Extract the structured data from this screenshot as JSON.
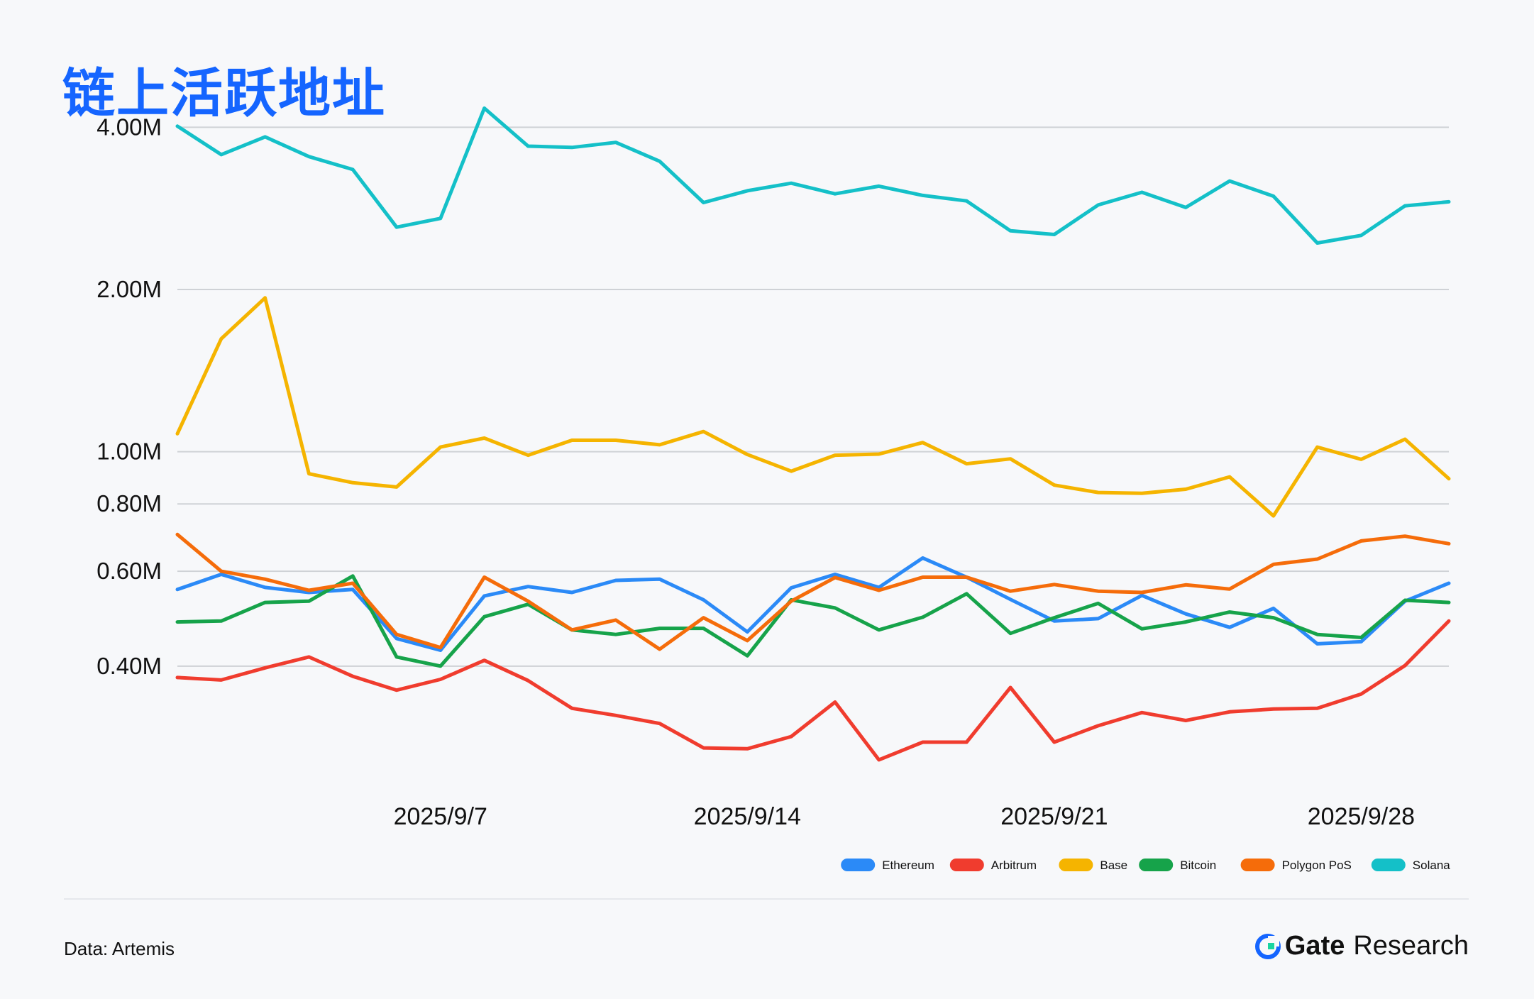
{
  "title": "链上活跃地址",
  "source": "Data: Artemis",
  "brand": {
    "name": "Gate",
    "sub": "Research",
    "icon": "gate-logo-icon",
    "icon_color": "#1565ff"
  },
  "chart_data": {
    "type": "line",
    "y_scale": "log",
    "ylim": [
      220000,
      4400000
    ],
    "y_ticks": [
      {
        "value": 400000,
        "label": "0.40M"
      },
      {
        "value": 600000,
        "label": "0.60M"
      },
      {
        "value": 800000,
        "label": "0.80M"
      },
      {
        "value": 1000000,
        "label": "1.00M"
      },
      {
        "value": 2000000,
        "label": "2.00M"
      },
      {
        "value": 4000000,
        "label": "4.00M"
      }
    ],
    "x": [
      "2025-09-01",
      "2025-09-02",
      "2025-09-03",
      "2025-09-04",
      "2025-09-05",
      "2025-09-06",
      "2025-09-07",
      "2025-09-08",
      "2025-09-09",
      "2025-09-10",
      "2025-09-11",
      "2025-09-12",
      "2025-09-13",
      "2025-09-14",
      "2025-09-15",
      "2025-09-16",
      "2025-09-17",
      "2025-09-18",
      "2025-09-19",
      "2025-09-20",
      "2025-09-21",
      "2025-09-22",
      "2025-09-23",
      "2025-09-24",
      "2025-09-25",
      "2025-09-26",
      "2025-09-27",
      "2025-09-28",
      "2025-09-29",
      "2025-09-30"
    ],
    "x_ticks": [
      {
        "value": "2025-09-07",
        "label": "2025/9/7"
      },
      {
        "value": "2025-09-14",
        "label": "2025/9/14"
      },
      {
        "value": "2025-09-21",
        "label": "2025/9/21"
      },
      {
        "value": "2025-09-28",
        "label": "2025/9/28"
      }
    ],
    "grid": true,
    "legend_position": "bottom-right",
    "series": [
      {
        "name": "Ethereum",
        "color": "#2b8af7",
        "values": [
          555000,
          592000,
          560000,
          548000,
          555000,
          450000,
          428000,
          540000,
          562000,
          548000,
          577000,
          580000,
          531000,
          463000,
          559000,
          592000,
          560000,
          635000,
          585000,
          532000,
          485000,
          490000,
          541000,
          500000,
          472000,
          512000,
          440000,
          444000,
          528000,
          570000
        ]
      },
      {
        "name": "Arbitrum",
        "color": "#f03c2e",
        "values": [
          381000,
          377000,
          397000,
          416000,
          383000,
          361000,
          378000,
          410000,
          376000,
          334000,
          324000,
          313000,
          282000,
          281000,
          296000,
          343000,
          268000,
          289000,
          289000,
          365000,
          289000,
          310000,
          328000,
          317000,
          329000,
          333000,
          334000,
          355000,
          401000,
          485000
        ]
      },
      {
        "name": "Base",
        "color": "#f5b400",
        "values": [
          1080000,
          1620000,
          1930000,
          910000,
          876000,
          860000,
          1020000,
          1060000,
          985000,
          1050000,
          1050000,
          1030000,
          1090000,
          988000,
          920000,
          985000,
          990000,
          1040000,
          950000,
          970000,
          867000,
          840000,
          837000,
          852000,
          898000,
          760000,
          1020000,
          968000,
          1055000,
          891000
        ]
      },
      {
        "name": "Bitcoin",
        "color": "#16a34a",
        "values": [
          483000,
          485000,
          525000,
          528000,
          588000,
          416000,
          400000,
          494000,
          521000,
          467000,
          458000,
          470000,
          470000,
          418000,
          531000,
          513000,
          467000,
          493000,
          545000,
          460000,
          492000,
          523000,
          469000,
          483000,
          504000,
          492000,
          458000,
          452000,
          530000,
          525000
        ]
      },
      {
        "name": "Polygon PoS",
        "color": "#f56c0a",
        "values": [
          702000,
          600000,
          580000,
          553000,
          570000,
          458000,
          433000,
          585000,
          528000,
          467000,
          487000,
          430000,
          492000,
          446000,
          528000,
          584000,
          553000,
          585000,
          585000,
          551000,
          567000,
          551000,
          548000,
          566000,
          556000,
          618000,
          632000,
          683000,
          697000,
          675000
        ]
      },
      {
        "name": "Solana",
        "color": "#14c0c8",
        "values": [
          4020000,
          3560000,
          3840000,
          3530000,
          3340000,
          2610000,
          2710000,
          4340000,
          3690000,
          3670000,
          3750000,
          3460000,
          2900000,
          3050000,
          3150000,
          3010000,
          3110000,
          2990000,
          2920000,
          2570000,
          2530000,
          2870000,
          3030000,
          2840000,
          3180000,
          2980000,
          2440000,
          2520000,
          2860000,
          2910000
        ]
      }
    ]
  }
}
